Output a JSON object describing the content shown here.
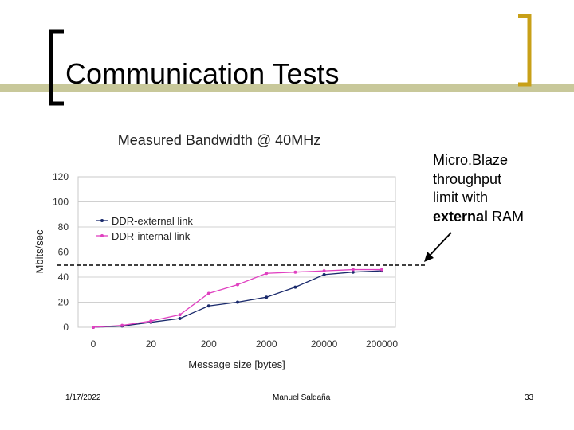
{
  "slide": {
    "title": "Communication Tests",
    "annotation": {
      "line1": "Micro.Blaze",
      "line2": "throughput",
      "line3": "limit with",
      "bold": "external",
      "rest": " RAM"
    },
    "footer": {
      "date": "1/17/2022",
      "author": "Manuel Saldaña",
      "page": "33"
    },
    "colors": {
      "accent_bar": "#c8c89a",
      "bracket": "#c8a018",
      "bracket_left": "#000000"
    }
  },
  "chart_data": {
    "type": "line",
    "title": "Measured Bandwidth @ 40MHz",
    "xlabel": "Message size [bytes]",
    "ylabel": "Mbits/sec",
    "x_tick_labels": [
      "0",
      "20",
      "200",
      "2000",
      "20000",
      "200000"
    ],
    "ylim": [
      0,
      120
    ],
    "y_ticks": [
      0,
      20,
      40,
      60,
      80,
      100,
      120
    ],
    "grid": true,
    "legend_position": "left-middle",
    "series": [
      {
        "name": "DDR-external link",
        "color": "#1a2a6c",
        "values": [
          0,
          1,
          4,
          7,
          17,
          20,
          24,
          32,
          42,
          44,
          45
        ]
      },
      {
        "name": "DDR-internal link",
        "color": "#e040c0",
        "values": [
          0,
          1.5,
          5,
          10,
          27,
          34,
          43,
          44,
          45,
          46,
          46
        ]
      }
    ],
    "limit_line": 50
  }
}
